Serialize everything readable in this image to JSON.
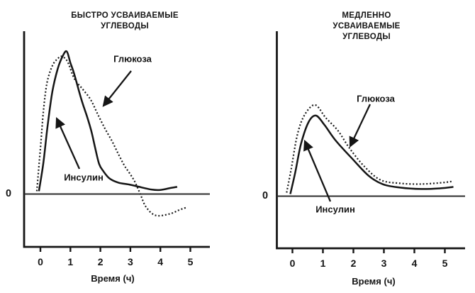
{
  "figure": {
    "background": "#ffffff",
    "ink_color": "#151515"
  },
  "chart_data": [
    {
      "id": "fast-carbs",
      "type": "line",
      "title": "БЫСТРО УСВАИВАЕМЫЕ\nУГЛЕВОДЫ",
      "xlabel": "Время (ч)",
      "x_ticks": [
        "0",
        "1",
        "2",
        "3",
        "4",
        "5"
      ],
      "xlim": [
        -0.55,
        5.65
      ],
      "ylim": [
        -0.37,
        1.13
      ],
      "y_scale": "relative units, no y tick labels shown except 0",
      "zero_label": "0",
      "grid": false,
      "legend_position": "inline annotations with arrows",
      "series": [
        {
          "name": "Глюкоза",
          "line_style": "dotted",
          "points": [
            [
              -0.12,
              0.02
            ],
            [
              0.0,
              0.32
            ],
            [
              0.1,
              0.58
            ],
            [
              0.22,
              0.78
            ],
            [
              0.4,
              0.9
            ],
            [
              0.58,
              0.95
            ],
            [
              0.71,
              0.965
            ],
            [
              0.9,
              0.93
            ],
            [
              1.13,
              0.81
            ],
            [
              1.43,
              0.73
            ],
            [
              1.68,
              0.66
            ],
            [
              1.91,
              0.56
            ],
            [
              2.15,
              0.46
            ],
            [
              2.39,
              0.37
            ],
            [
              2.6,
              0.28
            ],
            [
              2.8,
              0.2
            ],
            [
              2.96,
              0.15
            ],
            [
              3.14,
              0.09
            ],
            [
              3.33,
              0.0
            ],
            [
              3.52,
              -0.09
            ],
            [
              3.84,
              -0.15
            ],
            [
              4.3,
              -0.14
            ],
            [
              4.65,
              -0.11
            ],
            [
              4.86,
              -0.095
            ]
          ]
        },
        {
          "name": "Инсулин",
          "line_style": "solid",
          "points": [
            [
              -0.05,
              0.02
            ],
            [
              0.1,
              0.22
            ],
            [
              0.24,
              0.48
            ],
            [
              0.4,
              0.72
            ],
            [
              0.58,
              0.88
            ],
            [
              0.75,
              0.97
            ],
            [
              0.88,
              1.0
            ],
            [
              1.0,
              0.92
            ],
            [
              1.13,
              0.84
            ],
            [
              1.37,
              0.66
            ],
            [
              1.56,
              0.54
            ],
            [
              1.7,
              0.44
            ],
            [
              1.83,
              0.32
            ],
            [
              1.96,
              0.21
            ],
            [
              2.1,
              0.16
            ],
            [
              2.3,
              0.11
            ],
            [
              2.6,
              0.08
            ],
            [
              2.95,
              0.067
            ],
            [
              3.3,
              0.05
            ],
            [
              3.72,
              0.031
            ],
            [
              4.0,
              0.029
            ],
            [
              4.35,
              0.043
            ],
            [
              4.56,
              0.05
            ]
          ]
        }
      ]
    },
    {
      "id": "slow-carbs",
      "type": "line",
      "title": "МЕДЛЕННО УСВАИВАЕМЫЕ\nУГЛЕВОДЫ",
      "xlabel": "Время (ч)",
      "x_ticks": [
        "0",
        "1",
        "2",
        "3",
        "4",
        "5"
      ],
      "xlim": [
        -0.5,
        5.65
      ],
      "ylim": [
        -0.37,
        1.13
      ],
      "y_scale": "relative units, same scale as fast-carbs chart",
      "zero_label": "0",
      "grid": false,
      "legend_position": "inline annotations with arrows",
      "series": [
        {
          "name": "Глюкоза",
          "line_style": "dotted",
          "points": [
            [
              -0.19,
              0.025
            ],
            [
              -0.05,
              0.18
            ],
            [
              0.16,
              0.43
            ],
            [
              0.4,
              0.57
            ],
            [
              0.74,
              0.64
            ],
            [
              1.09,
              0.55
            ],
            [
              1.49,
              0.46
            ],
            [
              1.86,
              0.34
            ],
            [
              2.33,
              0.215
            ],
            [
              2.88,
              0.115
            ],
            [
              3.53,
              0.09
            ],
            [
              4.23,
              0.085
            ],
            [
              4.93,
              0.095
            ],
            [
              5.28,
              0.105
            ]
          ]
        },
        {
          "name": "Инсулин",
          "line_style": "solid",
          "points": [
            [
              -0.07,
              0.015
            ],
            [
              0.09,
              0.165
            ],
            [
              0.28,
              0.365
            ],
            [
              0.53,
              0.52
            ],
            [
              0.77,
              0.565
            ],
            [
              1.05,
              0.5
            ],
            [
              1.4,
              0.395
            ],
            [
              1.95,
              0.265
            ],
            [
              2.49,
              0.145
            ],
            [
              2.95,
              0.085
            ],
            [
              3.53,
              0.06
            ],
            [
              4.23,
              0.05
            ],
            [
              4.86,
              0.055
            ],
            [
              5.28,
              0.065
            ]
          ]
        }
      ]
    }
  ]
}
